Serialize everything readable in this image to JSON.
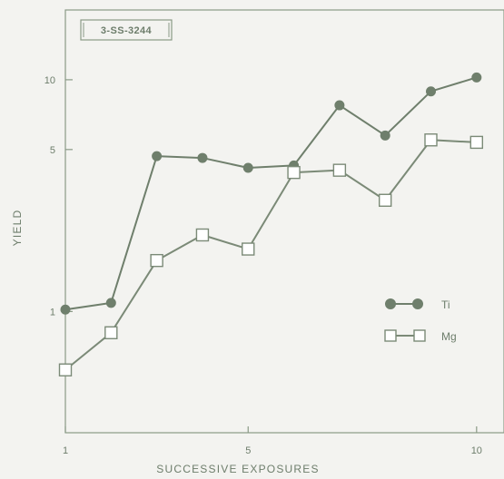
{
  "chart_data": {
    "type": "line",
    "xlabel": "SUCCESSIVE EXPOSURES",
    "ylabel": "YIELD",
    "figure_id": "3-SS-3244",
    "x": [
      1,
      2,
      3,
      4,
      5,
      6,
      7,
      8,
      9,
      10
    ],
    "xlim": [
      1,
      10.6
    ],
    "ylim": [
      0.3,
      20
    ],
    "yscale": "log",
    "x_ticks": [
      1,
      5,
      10
    ],
    "y_ticks": [
      1,
      5,
      10
    ],
    "grid": false,
    "legend_position": "right-middle",
    "series": [
      {
        "name": "Ti",
        "marker": "filled-circle",
        "color": "#6f7f6c",
        "values": [
          1.02,
          1.09,
          4.68,
          4.6,
          4.17,
          4.27,
          7.76,
          5.75,
          8.91,
          10.23
        ]
      },
      {
        "name": "Mg",
        "marker": "open-square",
        "color": "#7b8a77",
        "values": [
          0.56,
          0.81,
          1.66,
          2.14,
          1.86,
          3.98,
          4.07,
          3.02,
          5.5,
          5.37
        ]
      }
    ]
  },
  "colors": {
    "background": "#f3f3f0",
    "axis": "#8a9a86",
    "text": "#6d7d6b",
    "ti": "#6f7f6c",
    "mg": "#7b8a77"
  }
}
